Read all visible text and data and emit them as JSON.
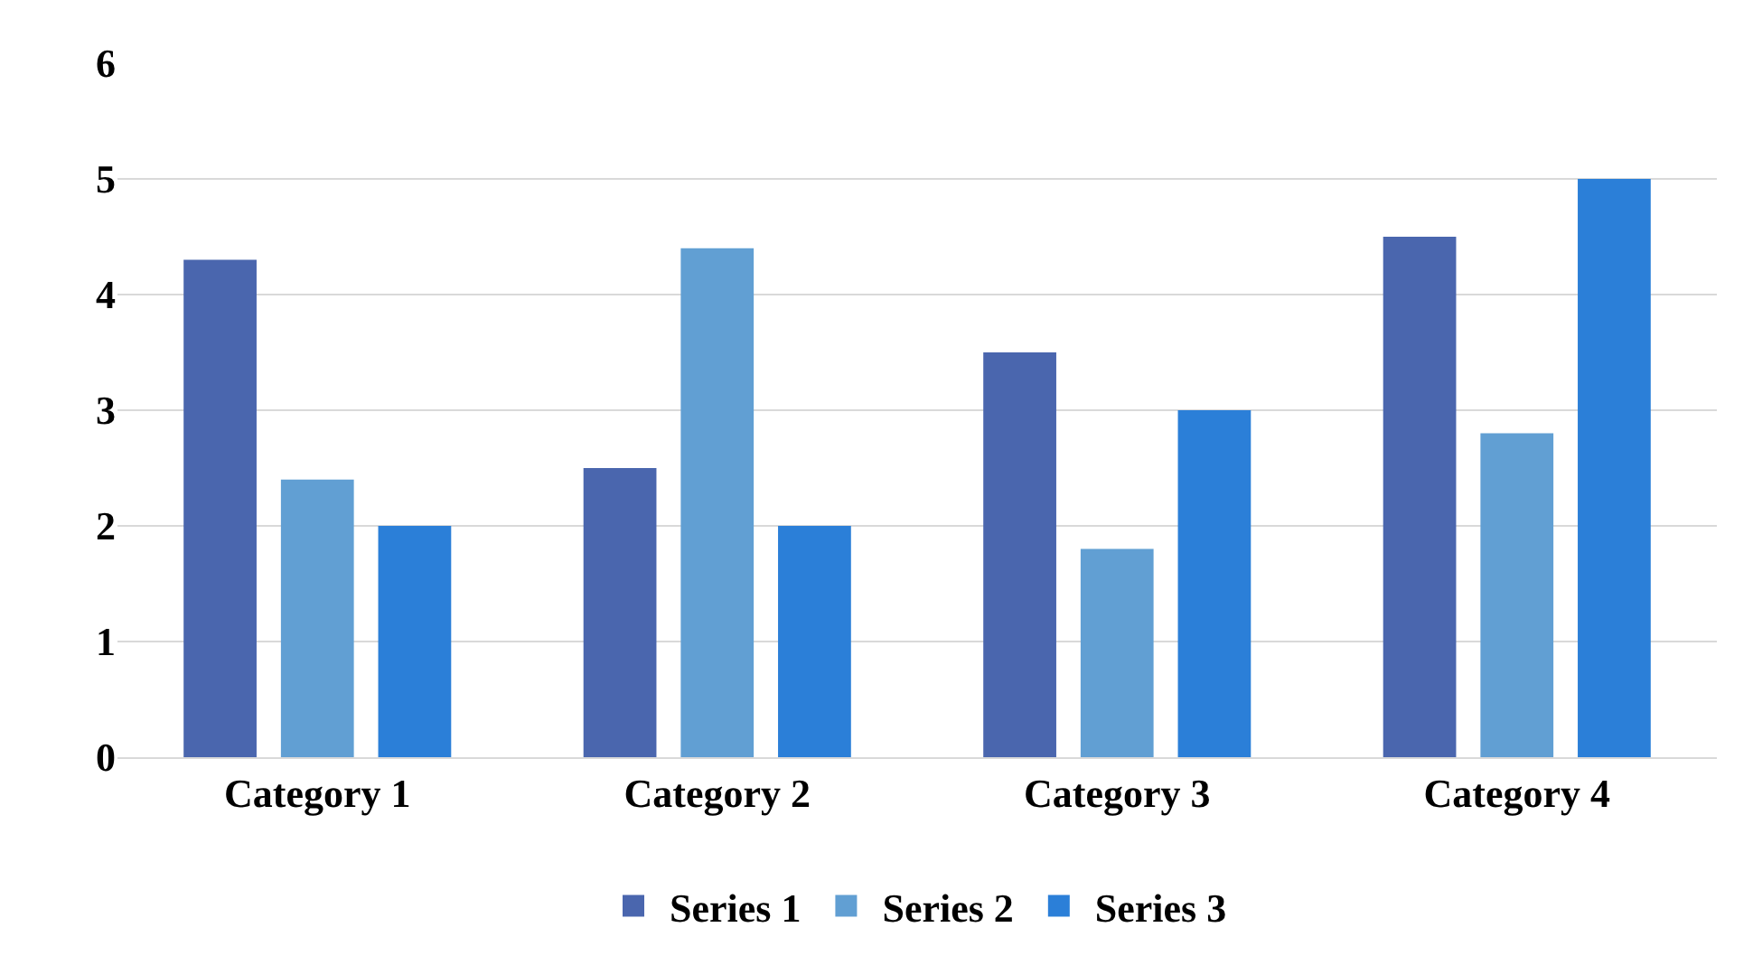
{
  "chart_data": {
    "type": "bar",
    "categories": [
      "Category 1",
      "Category 2",
      "Category 3",
      "Category 4"
    ],
    "series": [
      {
        "name": "Series 1",
        "color": "#4a66ae",
        "values": [
          4.3,
          2.5,
          3.5,
          4.5
        ]
      },
      {
        "name": "Series 2",
        "color": "#619fd3",
        "values": [
          2.4,
          4.4,
          1.8,
          2.8
        ]
      },
      {
        "name": "Series 3",
        "color": "#2b7fd8",
        "values": [
          2,
          2,
          3,
          5
        ]
      }
    ],
    "ylim": [
      0,
      6
    ],
    "yticks": [
      0,
      1,
      2,
      3,
      4,
      5,
      6
    ],
    "grid": "y",
    "legend": "bottom"
  }
}
